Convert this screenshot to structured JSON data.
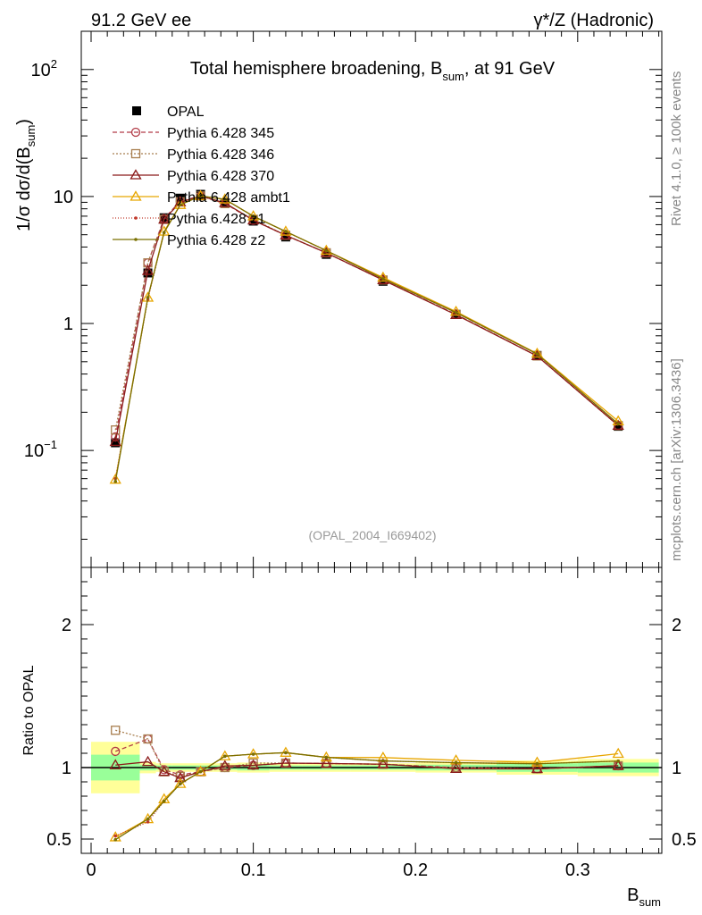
{
  "header": {
    "left": "91.2 GeV ee",
    "right": "γ*/Z (Hadronic)"
  },
  "side": {
    "rivet": "Rivet 4.1.0, ≥ 100k events",
    "url": "mcplots.cern.ch [arXiv:1306.3436]"
  },
  "chart_data": {
    "type": "line",
    "title": "Total hemisphere broadening, B_sum, at 91 GeV",
    "title_main": "Total hemisphere broadening, B",
    "title_sub": "sum",
    "title_tail": ", at 91 GeV",
    "watermark": "(OPAL_2004_I669402)",
    "xlabel_main": "B",
    "xlabel_sub": "sum",
    "ylabel_pre": "1/σ  dσ/d(B",
    "ylabel_sub": "sum",
    "ylabel_post": ")",
    "ratio_ylabel": "Ratio to OPAL",
    "xlim": [
      0.0,
      0.35
    ],
    "ylim": [
      0.012,
      200
    ],
    "ratio_ylim": [
      0.4,
      2.4
    ],
    "x_ticks": [
      {
        "value": 0,
        "label": "0"
      },
      {
        "value": 0.1,
        "label": "0.1"
      },
      {
        "value": 0.2,
        "label": "0.2"
      },
      {
        "value": 0.3,
        "label": "0.3"
      }
    ],
    "y_ticks": [
      {
        "value": 0.1,
        "base": "10",
        "exp": "−1"
      },
      {
        "value": 1,
        "base": "1",
        "exp": ""
      },
      {
        "value": 10,
        "base": "10",
        "exp": ""
      },
      {
        "value": 100,
        "base": "10",
        "exp": "2"
      }
    ],
    "ratio_ticks": [
      {
        "value": 0.5,
        "label": "0.5"
      },
      {
        "value": 1,
        "label": "1"
      },
      {
        "value": 2,
        "label": "2"
      }
    ],
    "x": [
      0.015,
      0.035,
      0.045,
      0.055,
      0.0675,
      0.0825,
      0.1,
      0.12,
      0.145,
      0.18,
      0.225,
      0.275,
      0.325
    ],
    "bin_edges": [
      0.0,
      0.03,
      0.04,
      0.05,
      0.06,
      0.075,
      0.09,
      0.11,
      0.13,
      0.16,
      0.2,
      0.25,
      0.3,
      0.35
    ],
    "data": {
      "name": "OPAL",
      "values": [
        0.115,
        2.5,
        6.8,
        9.7,
        10.4,
        8.8,
        6.4,
        4.8,
        3.5,
        2.15,
        1.18,
        0.56,
        0.155
      ],
      "band_inner": [
        0.09,
        0.02,
        0.015,
        0.015,
        0.015,
        0.015,
        0.02,
        0.015,
        0.015,
        0.015,
        0.02,
        0.03,
        0.035
      ],
      "band_outer": [
        0.18,
        0.04,
        0.03,
        0.03,
        0.03,
        0.03,
        0.035,
        0.03,
        0.03,
        0.03,
        0.035,
        0.05,
        0.06
      ]
    },
    "series": [
      {
        "name": "Pythia 6.428 345",
        "color": "#b23b47",
        "dash": "5,3",
        "marker": "circle",
        "values": [
          0.128,
          3.0,
          6.7,
          9.2,
          10.1,
          8.8,
          6.5,
          4.95,
          3.6,
          2.2,
          1.18,
          0.555,
          0.157
        ]
      },
      {
        "name": "Pythia 6.428 346",
        "color": "#a87e4f",
        "dash": "2,2",
        "marker": "square",
        "values": [
          0.145,
          3.0,
          6.6,
          9.1,
          10.1,
          8.8,
          6.6,
          4.95,
          3.6,
          2.2,
          1.18,
          0.555,
          0.157
        ]
      },
      {
        "name": "Pythia 6.428 370",
        "color": "#8b1a1a",
        "dash": "",
        "marker": "triangle",
        "values": [
          0.117,
          2.6,
          6.6,
          9.0,
          10.1,
          8.9,
          6.5,
          4.95,
          3.6,
          2.2,
          1.17,
          0.555,
          0.157
        ]
      },
      {
        "name": "Pythia 6.428 ambt1",
        "color": "#e8a600",
        "dash": "",
        "marker": "triangle",
        "values": [
          0.059,
          1.6,
          5.3,
          8.6,
          10.1,
          9.5,
          7.0,
          5.3,
          3.75,
          2.3,
          1.24,
          0.58,
          0.17
        ]
      },
      {
        "name": "Pythia 6.428 z1",
        "color": "#c0392b",
        "dash": "1,2",
        "marker": "dot",
        "values": [
          0.06,
          1.55,
          5.2,
          8.6,
          10.1,
          9.5,
          7.0,
          5.3,
          3.75,
          2.25,
          1.22,
          0.575,
          0.162
        ]
      },
      {
        "name": "Pythia 6.428 z2",
        "color": "#7a7000",
        "dash": "",
        "marker": "dot",
        "values": [
          0.057,
          1.6,
          5.2,
          8.6,
          10.1,
          9.5,
          7.0,
          5.3,
          3.75,
          2.25,
          1.22,
          0.575,
          0.162
        ]
      }
    ]
  }
}
